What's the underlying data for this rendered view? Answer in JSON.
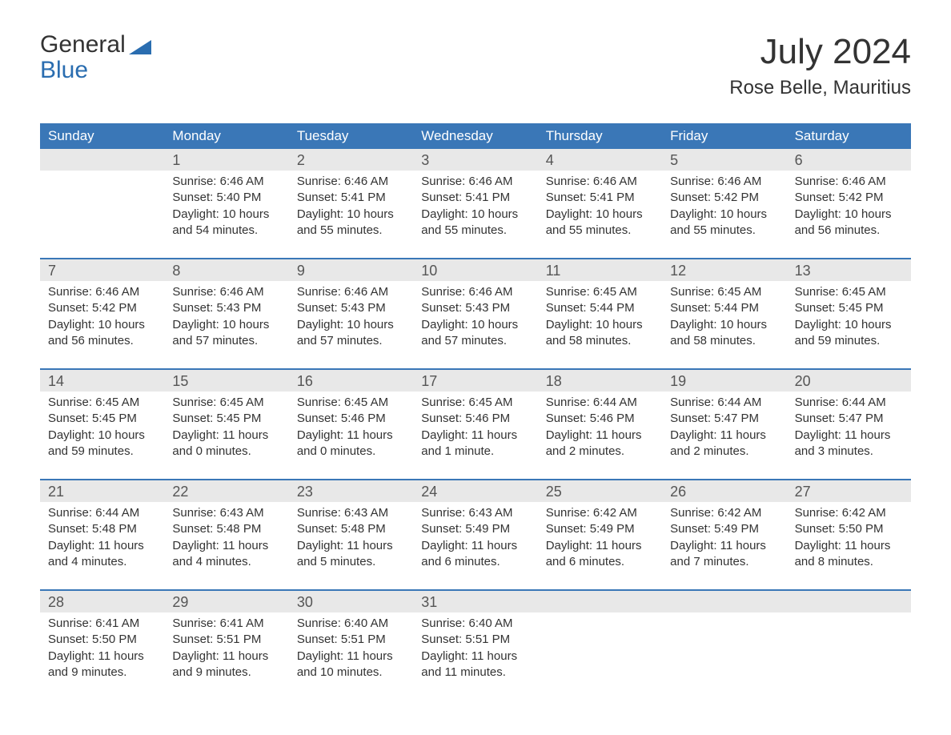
{
  "logo": {
    "top": "General",
    "bottom": "Blue"
  },
  "title": "July 2024",
  "location": "Rose Belle, Mauritius",
  "colors": {
    "header_bg": "#3a77b7",
    "header_text": "#ffffff",
    "daynum_bg": "#e8e8e8",
    "text": "#333333",
    "accent": "#2a6db0",
    "week_border": "#3a77b7",
    "background": "#ffffff"
  },
  "typography": {
    "title_fontsize": 44,
    "location_fontsize": 24,
    "dayheader_fontsize": 17,
    "daynum_fontsize": 18,
    "body_fontsize": 15
  },
  "day_headers": [
    "Sunday",
    "Monday",
    "Tuesday",
    "Wednesday",
    "Thursday",
    "Friday",
    "Saturday"
  ],
  "weeks": [
    [
      null,
      {
        "n": "1",
        "sunrise": "Sunrise: 6:46 AM",
        "sunset": "Sunset: 5:40 PM",
        "d1": "Daylight: 10 hours",
        "d2": "and 54 minutes."
      },
      {
        "n": "2",
        "sunrise": "Sunrise: 6:46 AM",
        "sunset": "Sunset: 5:41 PM",
        "d1": "Daylight: 10 hours",
        "d2": "and 55 minutes."
      },
      {
        "n": "3",
        "sunrise": "Sunrise: 6:46 AM",
        "sunset": "Sunset: 5:41 PM",
        "d1": "Daylight: 10 hours",
        "d2": "and 55 minutes."
      },
      {
        "n": "4",
        "sunrise": "Sunrise: 6:46 AM",
        "sunset": "Sunset: 5:41 PM",
        "d1": "Daylight: 10 hours",
        "d2": "and 55 minutes."
      },
      {
        "n": "5",
        "sunrise": "Sunrise: 6:46 AM",
        "sunset": "Sunset: 5:42 PM",
        "d1": "Daylight: 10 hours",
        "d2": "and 55 minutes."
      },
      {
        "n": "6",
        "sunrise": "Sunrise: 6:46 AM",
        "sunset": "Sunset: 5:42 PM",
        "d1": "Daylight: 10 hours",
        "d2": "and 56 minutes."
      }
    ],
    [
      {
        "n": "7",
        "sunrise": "Sunrise: 6:46 AM",
        "sunset": "Sunset: 5:42 PM",
        "d1": "Daylight: 10 hours",
        "d2": "and 56 minutes."
      },
      {
        "n": "8",
        "sunrise": "Sunrise: 6:46 AM",
        "sunset": "Sunset: 5:43 PM",
        "d1": "Daylight: 10 hours",
        "d2": "and 57 minutes."
      },
      {
        "n": "9",
        "sunrise": "Sunrise: 6:46 AM",
        "sunset": "Sunset: 5:43 PM",
        "d1": "Daylight: 10 hours",
        "d2": "and 57 minutes."
      },
      {
        "n": "10",
        "sunrise": "Sunrise: 6:46 AM",
        "sunset": "Sunset: 5:43 PM",
        "d1": "Daylight: 10 hours",
        "d2": "and 57 minutes."
      },
      {
        "n": "11",
        "sunrise": "Sunrise: 6:45 AM",
        "sunset": "Sunset: 5:44 PM",
        "d1": "Daylight: 10 hours",
        "d2": "and 58 minutes."
      },
      {
        "n": "12",
        "sunrise": "Sunrise: 6:45 AM",
        "sunset": "Sunset: 5:44 PM",
        "d1": "Daylight: 10 hours",
        "d2": "and 58 minutes."
      },
      {
        "n": "13",
        "sunrise": "Sunrise: 6:45 AM",
        "sunset": "Sunset: 5:45 PM",
        "d1": "Daylight: 10 hours",
        "d2": "and 59 minutes."
      }
    ],
    [
      {
        "n": "14",
        "sunrise": "Sunrise: 6:45 AM",
        "sunset": "Sunset: 5:45 PM",
        "d1": "Daylight: 10 hours",
        "d2": "and 59 minutes."
      },
      {
        "n": "15",
        "sunrise": "Sunrise: 6:45 AM",
        "sunset": "Sunset: 5:45 PM",
        "d1": "Daylight: 11 hours",
        "d2": "and 0 minutes."
      },
      {
        "n": "16",
        "sunrise": "Sunrise: 6:45 AM",
        "sunset": "Sunset: 5:46 PM",
        "d1": "Daylight: 11 hours",
        "d2": "and 0 minutes."
      },
      {
        "n": "17",
        "sunrise": "Sunrise: 6:45 AM",
        "sunset": "Sunset: 5:46 PM",
        "d1": "Daylight: 11 hours",
        "d2": "and 1 minute."
      },
      {
        "n": "18",
        "sunrise": "Sunrise: 6:44 AM",
        "sunset": "Sunset: 5:46 PM",
        "d1": "Daylight: 11 hours",
        "d2": "and 2 minutes."
      },
      {
        "n": "19",
        "sunrise": "Sunrise: 6:44 AM",
        "sunset": "Sunset: 5:47 PM",
        "d1": "Daylight: 11 hours",
        "d2": "and 2 minutes."
      },
      {
        "n": "20",
        "sunrise": "Sunrise: 6:44 AM",
        "sunset": "Sunset: 5:47 PM",
        "d1": "Daylight: 11 hours",
        "d2": "and 3 minutes."
      }
    ],
    [
      {
        "n": "21",
        "sunrise": "Sunrise: 6:44 AM",
        "sunset": "Sunset: 5:48 PM",
        "d1": "Daylight: 11 hours",
        "d2": "and 4 minutes."
      },
      {
        "n": "22",
        "sunrise": "Sunrise: 6:43 AM",
        "sunset": "Sunset: 5:48 PM",
        "d1": "Daylight: 11 hours",
        "d2": "and 4 minutes."
      },
      {
        "n": "23",
        "sunrise": "Sunrise: 6:43 AM",
        "sunset": "Sunset: 5:48 PM",
        "d1": "Daylight: 11 hours",
        "d2": "and 5 minutes."
      },
      {
        "n": "24",
        "sunrise": "Sunrise: 6:43 AM",
        "sunset": "Sunset: 5:49 PM",
        "d1": "Daylight: 11 hours",
        "d2": "and 6 minutes."
      },
      {
        "n": "25",
        "sunrise": "Sunrise: 6:42 AM",
        "sunset": "Sunset: 5:49 PM",
        "d1": "Daylight: 11 hours",
        "d2": "and 6 minutes."
      },
      {
        "n": "26",
        "sunrise": "Sunrise: 6:42 AM",
        "sunset": "Sunset: 5:49 PM",
        "d1": "Daylight: 11 hours",
        "d2": "and 7 minutes."
      },
      {
        "n": "27",
        "sunrise": "Sunrise: 6:42 AM",
        "sunset": "Sunset: 5:50 PM",
        "d1": "Daylight: 11 hours",
        "d2": "and 8 minutes."
      }
    ],
    [
      {
        "n": "28",
        "sunrise": "Sunrise: 6:41 AM",
        "sunset": "Sunset: 5:50 PM",
        "d1": "Daylight: 11 hours",
        "d2": "and 9 minutes."
      },
      {
        "n": "29",
        "sunrise": "Sunrise: 6:41 AM",
        "sunset": "Sunset: 5:51 PM",
        "d1": "Daylight: 11 hours",
        "d2": "and 9 minutes."
      },
      {
        "n": "30",
        "sunrise": "Sunrise: 6:40 AM",
        "sunset": "Sunset: 5:51 PM",
        "d1": "Daylight: 11 hours",
        "d2": "and 10 minutes."
      },
      {
        "n": "31",
        "sunrise": "Sunrise: 6:40 AM",
        "sunset": "Sunset: 5:51 PM",
        "d1": "Daylight: 11 hours",
        "d2": "and 11 minutes."
      },
      null,
      null,
      null
    ]
  ]
}
